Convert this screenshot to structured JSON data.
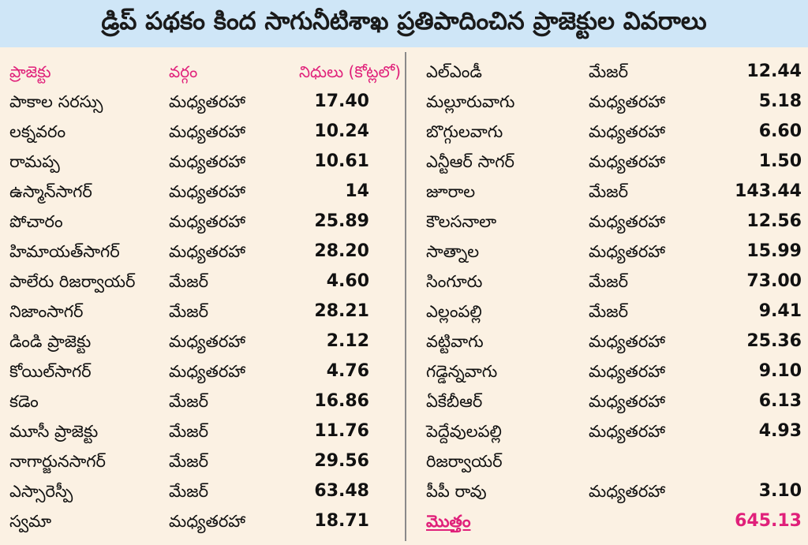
{
  "title": "డ్రిప్ పథకం కింద సాగునీటిశాఖ ప్రతిపాదించిన ప్రాజెక్టుల వివరాలు",
  "accent_color": "#e0207a",
  "header": {
    "project": "ప్రాజెక్టు",
    "category": "వర్గం",
    "funds": "నిధులు (కోట్లలో)"
  },
  "left_rows": [
    {
      "name": "పాకాల సరస్సు",
      "category": "మధ్యతరహా",
      "funds": "17.40"
    },
    {
      "name": "లక్నవరం",
      "category": "మధ్యతరహా",
      "funds": "10.24"
    },
    {
      "name": "రామప్ప",
      "category": "మధ్యతరహా",
      "funds": "10.61"
    },
    {
      "name": "ఉస్మాన్‌సాగర్",
      "category": "మధ్యతరహా",
      "funds": "14"
    },
    {
      "name": "పోచారం",
      "category": "మధ్యతరహా",
      "funds": "25.89"
    },
    {
      "name": "హిమాయత్‌సాగర్",
      "category": "మధ్యతరహా",
      "funds": "28.20"
    },
    {
      "name": "పాలేరు రిజర్వాయర్",
      "category": "మేజర్",
      "funds": "4.60"
    },
    {
      "name": "నిజాంసాగర్",
      "category": "మేజర్",
      "funds": "28.21"
    },
    {
      "name": "డిండి ప్రాజెక్టు",
      "category": "మధ్యతరహా",
      "funds": "2.12"
    },
    {
      "name": "కోయిల్‌సాగర్",
      "category": "మధ్యతరహా",
      "funds": "4.76"
    },
    {
      "name": "కడెం",
      "category": "మేజర్",
      "funds": "16.86"
    },
    {
      "name": "మూసీ ప్రాజెక్టు",
      "category": "మేజర్",
      "funds": "11.76"
    },
    {
      "name": "నాగార్జునసాగర్",
      "category": "మేజర్",
      "funds": "29.56"
    },
    {
      "name": "ఎస్సారెస్పీ",
      "category": "మేజర్",
      "funds": "63.48"
    },
    {
      "name": "స్వమా",
      "category": "మధ్యతరహా",
      "funds": "18.71"
    }
  ],
  "right_rows": [
    {
      "name": "ఎల్‌ఎండీ",
      "category": "మేజర్",
      "funds": "12.44"
    },
    {
      "name": "మల్లూరువాగు",
      "category": "మధ్యతరహా",
      "funds": "5.18"
    },
    {
      "name": "బొగ్గులవాగు",
      "category": "మధ్యతరహా",
      "funds": "6.60"
    },
    {
      "name": "ఎన్టీఆర్ సాగర్",
      "category": "మధ్యతరహా",
      "funds": "1.50"
    },
    {
      "name": "జూరాల",
      "category": "మేజర్",
      "funds": "143.44"
    },
    {
      "name": "కౌలసనాలా",
      "category": "మధ్యతరహా",
      "funds": "12.56"
    },
    {
      "name": "సాత్నాల",
      "category": "మధ్యతరహా",
      "funds": "15.99"
    },
    {
      "name": "సింగూరు",
      "category": "మేజర్",
      "funds": "73.00"
    },
    {
      "name": "ఎల్లంపల్లి",
      "category": "మేజర్",
      "funds": "9.41"
    },
    {
      "name": "వట్టివాగు",
      "category": "మధ్యతరహా",
      "funds": "25.36"
    },
    {
      "name": "గడ్డెన్నవాగు",
      "category": "మధ్యతరహా",
      "funds": "9.10"
    },
    {
      "name": "ఏకేబీఆర్",
      "category": "మధ్యతరహా",
      "funds": "6.13"
    },
    {
      "name": "పెద్దేవులపల్లి",
      "category": "మధ్యతరహా",
      "funds": "4.93"
    },
    {
      "name": "రిజర్వాయర్",
      "category": "",
      "funds": ""
    },
    {
      "name": "పీపీ రావు",
      "category": "మధ్యతరహా",
      "funds": "3.10"
    }
  ],
  "total": {
    "label": "మొత్తం",
    "value": "645.13"
  }
}
